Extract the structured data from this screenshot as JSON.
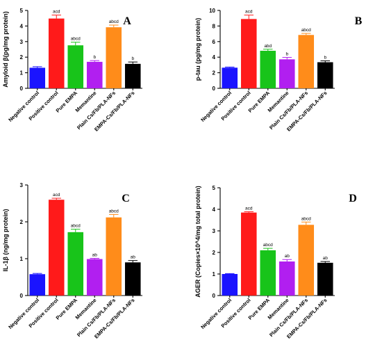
{
  "colors": [
    "#1a14ff",
    "#ff1a1a",
    "#18c41a",
    "#b11ff0",
    "#ff8c1a",
    "#000000"
  ],
  "chart_data": [
    {
      "type": "bar",
      "panel_letter": "A",
      "ylabel": "Amyloid β(pg/mg protein)",
      "ylim": [
        0,
        5
      ],
      "yticks": [
        0,
        1,
        2,
        3,
        4,
        5
      ],
      "categories": [
        "Negative control",
        "Positive control",
        "Pure EMPA",
        "Memantine",
        "Plain Cs/Fb/PLA-NFs",
        "EMPA-Cs/Fb/PLA-NFs"
      ],
      "values": [
        1.32,
        4.48,
        2.76,
        1.7,
        3.92,
        1.57
      ],
      "errors": [
        0.07,
        0.22,
        0.2,
        0.08,
        0.14,
        0.12
      ],
      "labels": [
        "",
        "acd",
        "abcd",
        "b",
        "abcd",
        "b"
      ]
    },
    {
      "type": "bar",
      "panel_letter": "B",
      "ylabel": "p-tau (pg/mg protein)",
      "ylim": [
        0,
        10
      ],
      "yticks": [
        0,
        2,
        4,
        6,
        8,
        10
      ],
      "categories": [
        "Negative control",
        "Positive control",
        "Pure EMPA",
        "Memantine",
        "Plain Cs/Fb/PLA-NFs",
        "EMPA-Cs/Fb/PLA-NFs"
      ],
      "values": [
        2.65,
        8.9,
        4.82,
        3.72,
        6.85,
        3.35
      ],
      "errors": [
        0.08,
        0.5,
        0.2,
        0.25,
        0.2,
        0.18
      ],
      "labels": [
        "",
        "acd",
        "abd",
        "b",
        "abcd",
        "b"
      ]
    },
    {
      "type": "bar",
      "panel_letter": "C",
      "ylabel": "IL-1β (ng/mg protein)",
      "ylim": [
        0,
        3
      ],
      "yticks": [
        0,
        1,
        2,
        3
      ],
      "categories": [
        "Negative control",
        "Positive control",
        "Pure EMPA",
        "Memantine",
        "Plain Cs/Fb/PLA-NFs",
        "EMPA-Cs/Fb/PLA-NFs"
      ],
      "values": [
        0.58,
        2.6,
        1.72,
        0.99,
        2.12,
        0.9
      ],
      "errors": [
        0.02,
        0.04,
        0.08,
        0.02,
        0.08,
        0.05
      ],
      "labels": [
        "",
        "acd",
        "abcd",
        "ab",
        "abcd",
        "ab"
      ]
    },
    {
      "type": "bar",
      "panel_letter": "D",
      "ylabel": "AGER (Copies×10^4/mg total protein)",
      "ylim": [
        0,
        5
      ],
      "yticks": [
        0,
        1,
        2,
        3,
        4,
        5
      ],
      "categories": [
        "Negative control",
        "Positive control",
        "Pure EMPA",
        "Memantine",
        "Plain Cs/Fb/PLA-NFs",
        "EMPA-Cs/Fb/PLA-NFs"
      ],
      "values": [
        1.0,
        3.85,
        2.1,
        1.58,
        3.28,
        1.52
      ],
      "errors": [
        0.02,
        0.04,
        0.09,
        0.09,
        0.13,
        0.06
      ],
      "labels": [
        "",
        "acd",
        "abcd",
        "ab",
        "abcd",
        "ab"
      ]
    }
  ]
}
